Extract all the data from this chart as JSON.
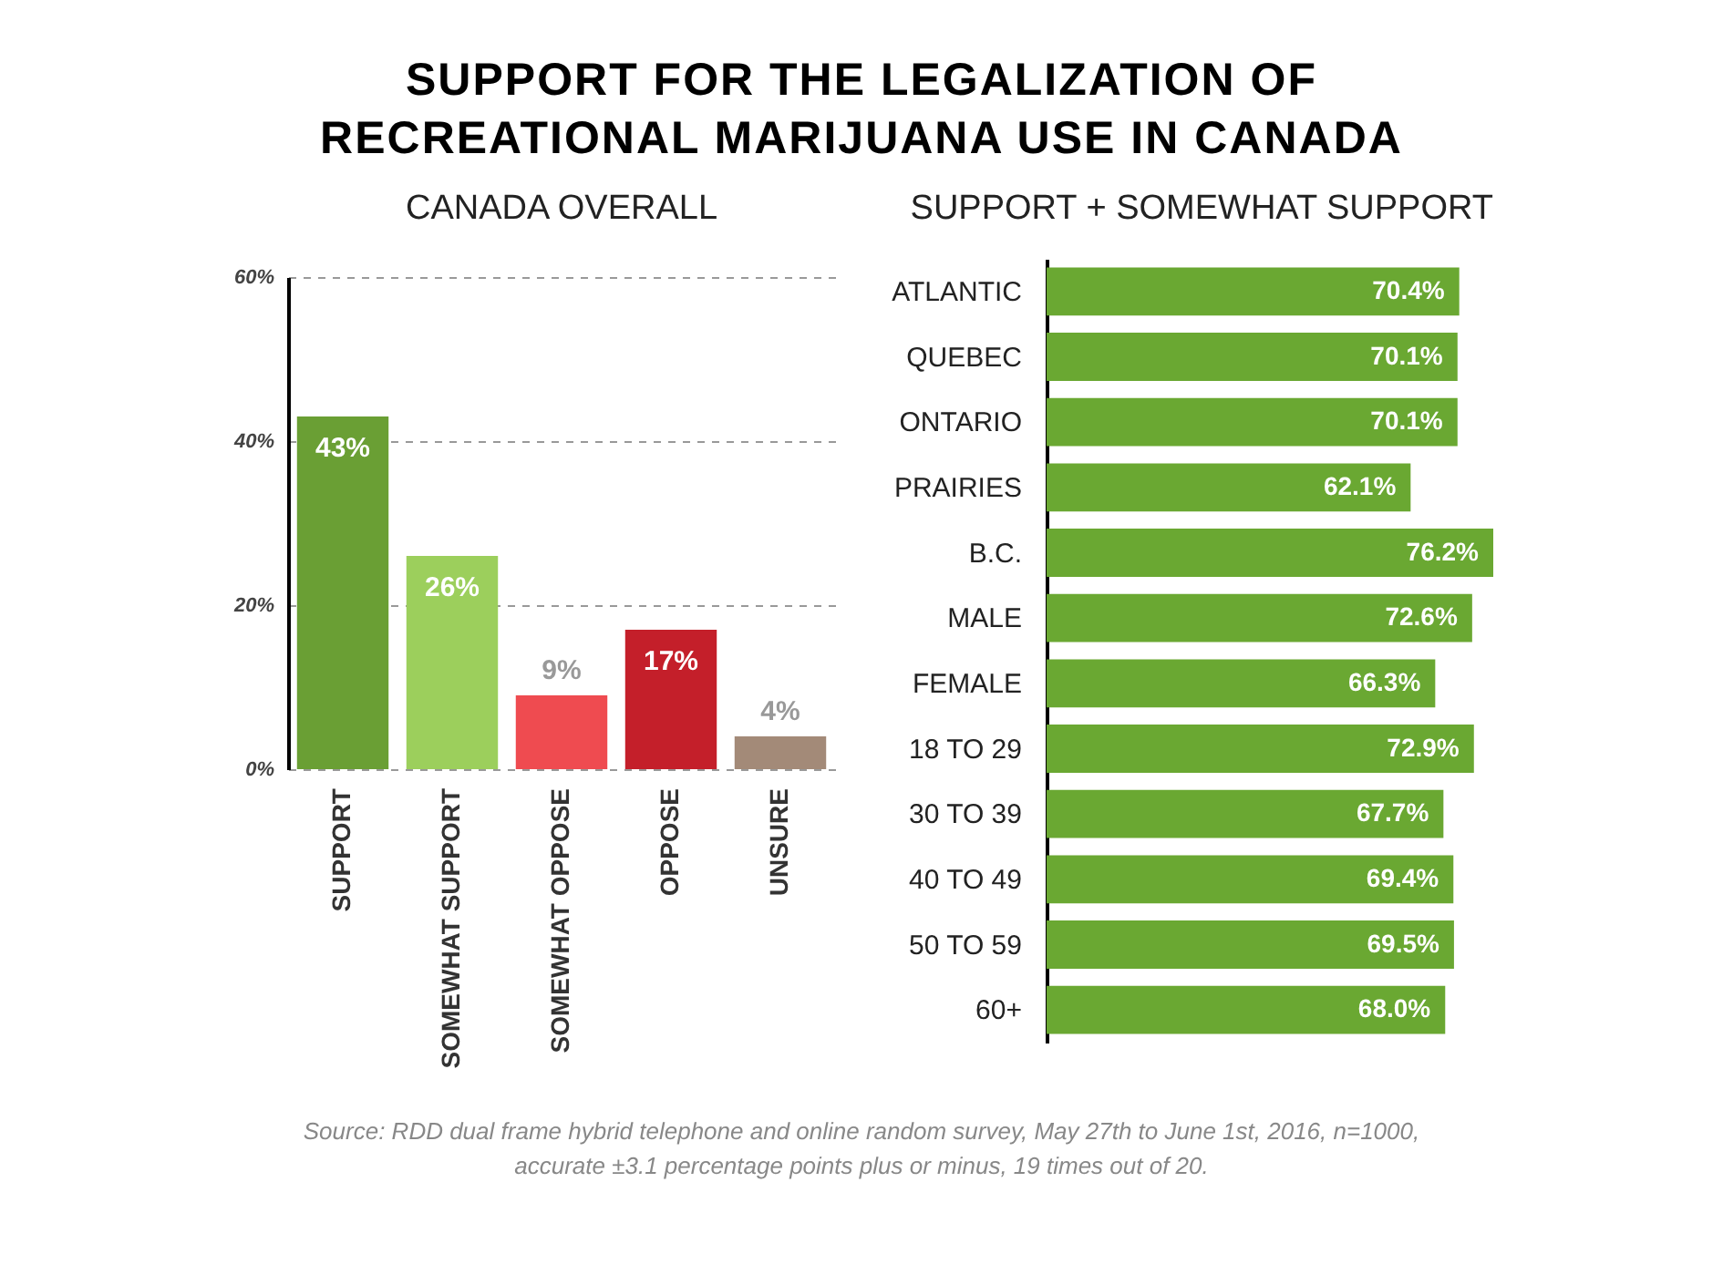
{
  "chart_data": [
    {
      "type": "bar",
      "title": "SUPPORT FOR THE LEGALIZATION OF RECREATIONAL MARIJUANA USE IN CANADA",
      "subtitle": "CANADA OVERALL",
      "categories": [
        "SUPPORT",
        "SOMEWHAT SUPPORT",
        "SOMEWHAT OPPOSE",
        "OPPOSE",
        "UNSURE"
      ],
      "values": [
        43,
        26,
        9,
        17,
        4
      ],
      "colors": [
        "#6a9f34",
        "#9ccf5c",
        "#ef4b50",
        "#c41f2a",
        "#a38a78"
      ],
      "value_labels": [
        "43%",
        "26%",
        "9%",
        "17%",
        "4%"
      ],
      "ylim": [
        0,
        60
      ],
      "yticks": [
        {
          "value": 0,
          "label": "0%"
        },
        {
          "value": 20,
          "label": "20%"
        },
        {
          "value": 40,
          "label": "40%"
        },
        {
          "value": 60,
          "label": "60%"
        }
      ],
      "grid": "y"
    },
    {
      "type": "bar",
      "orientation": "horizontal",
      "title": "SUPPORT + SOMEWHAT SUPPORT",
      "categories": [
        "ATLANTIC",
        "QUEBEC",
        "ONTARIO",
        "PRAIRIES",
        "B.C.",
        "MALE",
        "FEMALE",
        "18 TO 29",
        "30 TO 39",
        "40 TO 49",
        "50 TO 59",
        "60+"
      ],
      "values": [
        70.4,
        70.1,
        70.1,
        62.1,
        76.2,
        72.6,
        66.3,
        72.9,
        67.7,
        69.4,
        69.5,
        68.0
      ],
      "color": "#6aa832",
      "value_labels": [
        "70.4%",
        "70.1%",
        "70.1%",
        "62.1%",
        "76.2%",
        "72.6%",
        "66.3%",
        "72.9%",
        "67.7%",
        "69.4%",
        "69.5%",
        "68.0%"
      ],
      "annotations": [
        "Source: RDD dual frame hybrid telephone and online random survey, May 27th to June 1st, 2016, n=1000, accurate ±3.1 percentage points plus or minus, 19 times out of 20."
      ]
    }
  ]
}
